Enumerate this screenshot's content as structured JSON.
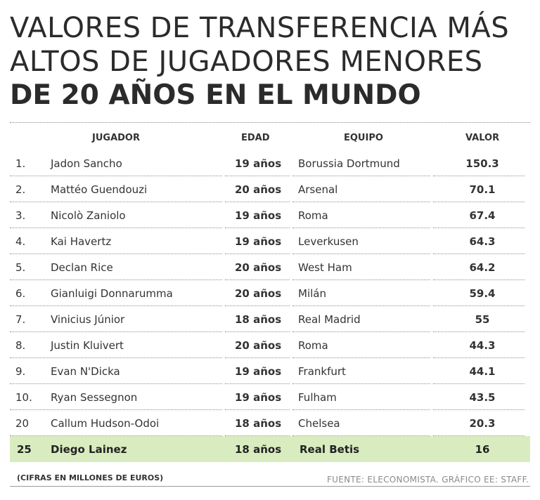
{
  "title": {
    "line1": "VALORES DE TRANSFERENCIA MÁS",
    "line2": "ALTOS DE JUGADORES MENORES",
    "line3": "DE 20 AÑOS EN EL MUNDO"
  },
  "headers": {
    "player": "JUGADOR",
    "age": "EDAD",
    "team": "EQUIPO",
    "value": "VALOR"
  },
  "chart_data": {
    "type": "table",
    "title": "VALORES DE TRANSFERENCIA MÁS ALTOS DE JUGADORES MENORES DE 20 AÑOS EN EL MUNDO",
    "columns": [
      "JUGADOR",
      "EDAD",
      "EQUIPO",
      "VALOR"
    ],
    "rows": [
      {
        "rank": "1.",
        "player": "Jadon Sancho",
        "age": "19 años",
        "team": "Borussia Dortmund",
        "value": "150.3"
      },
      {
        "rank": "2.",
        "player": "Mattéo Guendouzi",
        "age": "20 años",
        "team": "Arsenal",
        "value": "70.1"
      },
      {
        "rank": "3.",
        "player": "Nicolò Zaniolo",
        "age": "19 años",
        "team": "Roma",
        "value": "67.4"
      },
      {
        "rank": "4.",
        "player": "Kai Havertz",
        "age": "19 años",
        "team": "Leverkusen",
        "value": "64.3"
      },
      {
        "rank": "5.",
        "player": "Declan Rice",
        "age": "20 años",
        "team": "West Ham",
        "value": "64.2"
      },
      {
        "rank": "6.",
        "player": "Gianluigi Donnarumma",
        "age": "20 años",
        "team": "Milán",
        "value": "59.4"
      },
      {
        "rank": "7.",
        "player": "Vinicius Júnior",
        "age": "18 años",
        "team": "Real Madrid",
        "value": "55"
      },
      {
        "rank": "8.",
        "player": "Justin Kluivert",
        "age": "20 años",
        "team": "Roma",
        "value": "44.3"
      },
      {
        "rank": "9.",
        "player": "Evan N'Dicka",
        "age": "19 años",
        "team": "Frankfurt",
        "value": "44.1"
      },
      {
        "rank": "10.",
        "player": "Ryan Sessegnon",
        "age": "19 años",
        "team": "Fulham",
        "value": "43.5"
      },
      {
        "rank": "20",
        "player": "Callum Hudson-Odoi",
        "age": "18 años",
        "team": "Chelsea",
        "value": "20.3"
      },
      {
        "rank": "25",
        "player": "Diego Lainez",
        "age": "18 años",
        "team": "Real Betis",
        "value": "16",
        "highlight": true
      }
    ]
  },
  "footer": {
    "note": "(CIFRAS EN MILLONES DE EUROS)",
    "source": "FUENTE: ELECONOMISTA. GRÁFICO EE: STAFF."
  },
  "colors": {
    "highlight": "#d9ecbf",
    "text": "#2b2b2b",
    "source": "#8a8a8a"
  }
}
